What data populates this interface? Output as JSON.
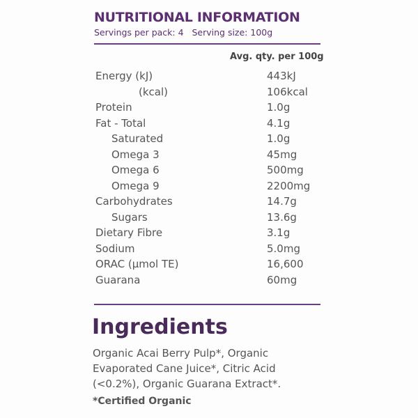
{
  "header": {
    "title": "NUTRITIONAL INFORMATION",
    "subtitle": "Servings per pack: 4   Serving size: 100g"
  },
  "table": {
    "column_header": "Avg. qty. per 100g",
    "rows": [
      [
        "Energy (kJ)",
        "443kJ"
      ],
      [
        "(kcal)",
        "106kcal"
      ],
      [
        "Protein",
        "1.0g"
      ],
      [
        "Fat - Total",
        "4.1g"
      ],
      [
        "Saturated",
        "1.0g"
      ],
      [
        "Omega 3",
        "45mg"
      ],
      [
        "Omega 6",
        "500mg"
      ],
      [
        "Omega 9",
        "2200mg"
      ],
      [
        "Carbohydrates",
        "14.7g"
      ],
      [
        "Sugars",
        "13.6g"
      ],
      [
        "Dietary Fibre",
        "3.1g"
      ],
      [
        "Sodium",
        "5.0mg"
      ],
      [
        "ORAC (µmol TE)",
        "16,600"
      ],
      [
        "Guarana",
        "60mg"
      ]
    ]
  },
  "ingredients": {
    "heading": "Ingredients",
    "lines": [
      "Organic Acai Berry Pulp*, Organic",
      "Evaporated Cane Juice*, Citric Acid",
      "(<0.2%), Organic Guarana Extract*."
    ],
    "footnote": "*Certified Organic"
  }
}
